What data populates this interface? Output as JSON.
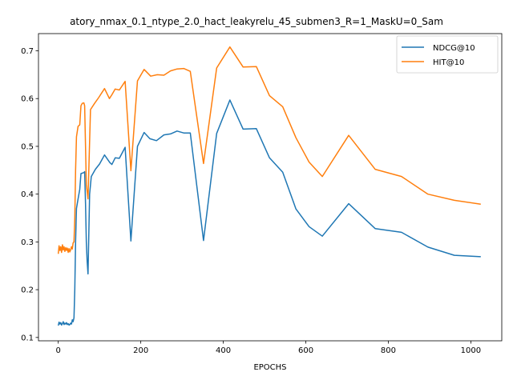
{
  "chart_data": {
    "type": "line",
    "title": "atory_nmax_0.1_ntype_2.0_hact_leakyrelu_45_submen3_R=1_MaskU=0_Sam",
    "xlabel": "EPOCHS",
    "ylabel": "",
    "xlim": [
      -48,
      1075
    ],
    "ylim": [
      0.093,
      0.736
    ],
    "xticks": [
      0,
      200,
      400,
      600,
      800,
      1000
    ],
    "yticks": [
      0.1,
      0.2,
      0.3,
      0.4,
      0.5,
      0.6,
      0.7
    ],
    "legend_position": "upper right",
    "grid": false,
    "series": [
      {
        "name": "NDCG@10",
        "color": "#1f77b4",
        "points": [
          [
            0,
            0.125
          ],
          [
            2,
            0.132
          ],
          [
            4,
            0.128
          ],
          [
            6,
            0.131
          ],
          [
            8,
            0.126
          ],
          [
            10,
            0.129
          ],
          [
            12,
            0.133
          ],
          [
            14,
            0.127
          ],
          [
            16,
            0.13
          ],
          [
            18,
            0.128
          ],
          [
            20,
            0.131
          ],
          [
            22,
            0.127
          ],
          [
            24,
            0.129
          ],
          [
            26,
            0.126
          ],
          [
            28,
            0.127
          ],
          [
            30,
            0.13
          ],
          [
            32,
            0.128
          ],
          [
            34,
            0.137
          ],
          [
            36,
            0.133
          ],
          [
            38,
            0.141
          ],
          [
            40,
            0.2
          ],
          [
            42,
            0.3
          ],
          [
            44,
            0.37
          ],
          [
            48,
            0.39
          ],
          [
            52,
            0.41
          ],
          [
            55,
            0.443
          ],
          [
            58,
            0.444
          ],
          [
            62,
            0.445
          ],
          [
            64,
            0.447
          ],
          [
            66,
            0.38
          ],
          [
            68,
            0.3
          ],
          [
            70,
            0.26
          ],
          [
            72,
            0.233
          ],
          [
            76,
            0.4
          ],
          [
            80,
            0.437
          ],
          [
            90,
            0.452
          ],
          [
            100,
            0.463
          ],
          [
            112,
            0.482
          ],
          [
            125,
            0.466
          ],
          [
            130,
            0.462
          ],
          [
            138,
            0.476
          ],
          [
            148,
            0.475
          ],
          [
            162,
            0.498
          ],
          [
            176,
            0.302
          ],
          [
            192,
            0.5
          ],
          [
            208,
            0.529
          ],
          [
            222,
            0.516
          ],
          [
            238,
            0.512
          ],
          [
            256,
            0.524
          ],
          [
            272,
            0.526
          ],
          [
            288,
            0.532
          ],
          [
            304,
            0.528
          ],
          [
            320,
            0.528
          ],
          [
            352,
            0.303
          ],
          [
            384,
            0.527
          ],
          [
            416,
            0.597
          ],
          [
            448,
            0.536
          ],
          [
            480,
            0.537
          ],
          [
            512,
            0.476
          ],
          [
            544,
            0.446
          ],
          [
            576,
            0.369
          ],
          [
            608,
            0.332
          ],
          [
            640,
            0.312
          ],
          [
            704,
            0.38
          ],
          [
            768,
            0.328
          ],
          [
            832,
            0.32
          ],
          [
            896,
            0.289
          ],
          [
            960,
            0.272
          ],
          [
            1024,
            0.269
          ]
        ]
      },
      {
        "name": "HIT@10",
        "color": "#ff7f0e",
        "points": [
          [
            0,
            0.275
          ],
          [
            2,
            0.292
          ],
          [
            4,
            0.282
          ],
          [
            6,
            0.29
          ],
          [
            8,
            0.278
          ],
          [
            10,
            0.294
          ],
          [
            12,
            0.283
          ],
          [
            14,
            0.29
          ],
          [
            16,
            0.28
          ],
          [
            18,
            0.288
          ],
          [
            20,
            0.282
          ],
          [
            22,
            0.287
          ],
          [
            24,
            0.278
          ],
          [
            26,
            0.286
          ],
          [
            28,
            0.279
          ],
          [
            30,
            0.283
          ],
          [
            32,
            0.29
          ],
          [
            34,
            0.285
          ],
          [
            36,
            0.298
          ],
          [
            38,
            0.3
          ],
          [
            40,
            0.35
          ],
          [
            42,
            0.45
          ],
          [
            44,
            0.52
          ],
          [
            48,
            0.542
          ],
          [
            52,
            0.545
          ],
          [
            55,
            0.585
          ],
          [
            58,
            0.59
          ],
          [
            62,
            0.591
          ],
          [
            64,
            0.585
          ],
          [
            66,
            0.5
          ],
          [
            68,
            0.42
          ],
          [
            72,
            0.39
          ],
          [
            78,
            0.577
          ],
          [
            88,
            0.59
          ],
          [
            98,
            0.602
          ],
          [
            112,
            0.621
          ],
          [
            124,
            0.6
          ],
          [
            130,
            0.608
          ],
          [
            138,
            0.62
          ],
          [
            148,
            0.618
          ],
          [
            162,
            0.636
          ],
          [
            176,
            0.449
          ],
          [
            192,
            0.637
          ],
          [
            208,
            0.661
          ],
          [
            224,
            0.647
          ],
          [
            240,
            0.65
          ],
          [
            256,
            0.649
          ],
          [
            272,
            0.658
          ],
          [
            288,
            0.662
          ],
          [
            304,
            0.663
          ],
          [
            320,
            0.657
          ],
          [
            352,
            0.464
          ],
          [
            384,
            0.664
          ],
          [
            416,
            0.708
          ],
          [
            448,
            0.666
          ],
          [
            480,
            0.667
          ],
          [
            512,
            0.606
          ],
          [
            544,
            0.583
          ],
          [
            576,
            0.518
          ],
          [
            608,
            0.467
          ],
          [
            640,
            0.437
          ],
          [
            704,
            0.523
          ],
          [
            768,
            0.452
          ],
          [
            832,
            0.437
          ],
          [
            896,
            0.4
          ],
          [
            960,
            0.387
          ],
          [
            1024,
            0.379
          ]
        ]
      }
    ]
  }
}
